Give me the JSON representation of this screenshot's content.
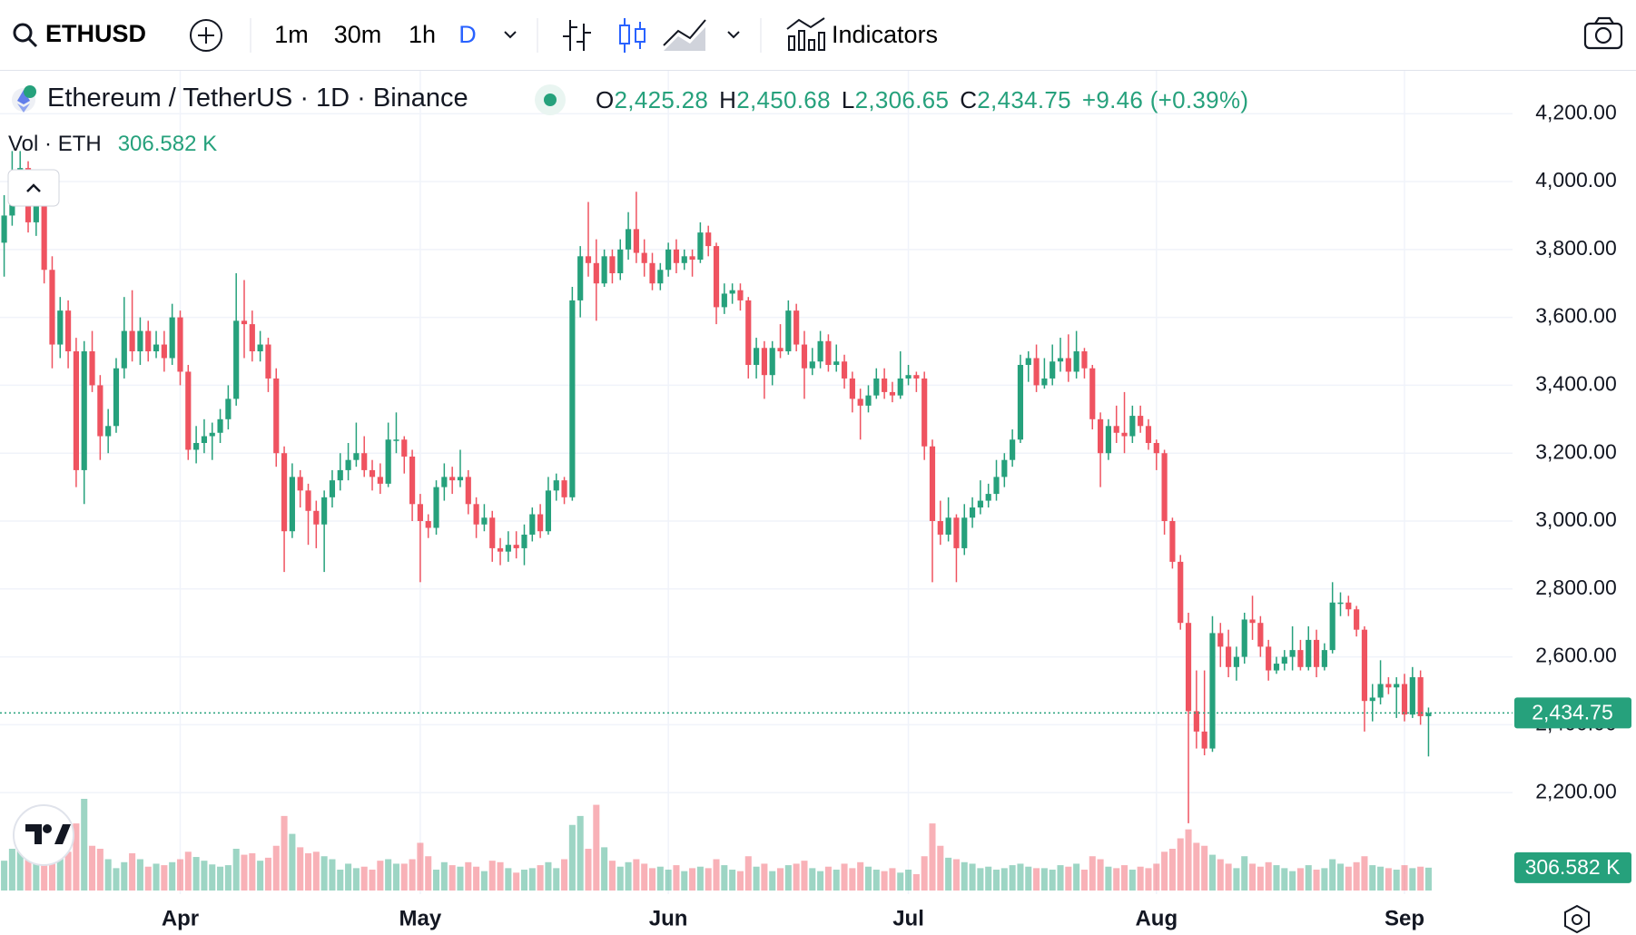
{
  "toolbar": {
    "symbol": "ETHUSD",
    "intervals": [
      "1m",
      "30m",
      "1h",
      "D"
    ],
    "indicators": "Indicators"
  },
  "legend": {
    "title": "Ethereum / TetherUS · 1D · Binance",
    "open_label": "O",
    "open": "2,425.28",
    "high_label": "H",
    "high": "2,450.68",
    "low_label": "L",
    "low": "2,306.65",
    "close_label": "C",
    "close": "2,434.75",
    "change": "+9.46 (+0.39%)",
    "volume_title": "Vol · ETH",
    "volume": "306.582 K"
  },
  "chart_data": {
    "type": "candlestick",
    "up_color": "#26a17c",
    "down_color": "#ef5360",
    "grid": true,
    "xlim": [
      -0.52,
      188.5
    ],
    "xticks": [
      {
        "value": 22,
        "label": "Apr"
      },
      {
        "value": 52,
        "label": "May"
      },
      {
        "value": 83,
        "label": "Jun"
      },
      {
        "value": 113,
        "label": "Jul"
      },
      {
        "value": 144,
        "label": "Aug"
      },
      {
        "value": 175,
        "label": "Sep"
      }
    ],
    "ylim": [
      1901,
      4329
    ],
    "yticks": [
      {
        "value": 2200,
        "label": "2,200.00"
      },
      {
        "value": 2400,
        "label": "2,400.00"
      },
      {
        "value": 2600,
        "label": "2,600.00"
      },
      {
        "value": 2800,
        "label": "2,800.00"
      },
      {
        "value": 3000,
        "label": "3,000.00"
      },
      {
        "value": 3200,
        "label": "3,200.00"
      },
      {
        "value": 3400,
        "label": "3,400.00"
      },
      {
        "value": 3600,
        "label": "3,600.00"
      },
      {
        "value": 3800,
        "label": "3,800.00"
      },
      {
        "value": 4000,
        "label": "4,000.00"
      },
      {
        "value": 4200,
        "label": "4,200.00"
      }
    ],
    "ohlc": [
      [
        3820,
        3960,
        3720,
        3900
      ],
      [
        3900,
        4090,
        3870,
        4000
      ],
      [
        4000,
        4090,
        3960,
        4040
      ],
      [
        4040,
        4060,
        3850,
        3880
      ],
      [
        3880,
        4000,
        3840,
        3980
      ],
      [
        3980,
        4000,
        3700,
        3740
      ],
      [
        3740,
        3780,
        3450,
        3520
      ],
      [
        3520,
        3660,
        3480,
        3620
      ],
      [
        3620,
        3650,
        3450,
        3500
      ],
      [
        3500,
        3540,
        3100,
        3150
      ],
      [
        3150,
        3530,
        3050,
        3500
      ],
      [
        3500,
        3560,
        3380,
        3400
      ],
      [
        3400,
        3430,
        3180,
        3250
      ],
      [
        3250,
        3330,
        3200,
        3280
      ],
      [
        3280,
        3480,
        3260,
        3450
      ],
      [
        3450,
        3660,
        3420,
        3560
      ],
      [
        3560,
        3680,
        3470,
        3500
      ],
      [
        3500,
        3600,
        3460,
        3560
      ],
      [
        3560,
        3590,
        3470,
        3500
      ],
      [
        3500,
        3560,
        3480,
        3520
      ],
      [
        3520,
        3560,
        3440,
        3480
      ],
      [
        3480,
        3640,
        3460,
        3600
      ],
      [
        3600,
        3620,
        3400,
        3440
      ],
      [
        3440,
        3460,
        3180,
        3210
      ],
      [
        3210,
        3280,
        3170,
        3230
      ],
      [
        3230,
        3300,
        3200,
        3250
      ],
      [
        3250,
        3290,
        3180,
        3260
      ],
      [
        3260,
        3330,
        3230,
        3300
      ],
      [
        3300,
        3400,
        3270,
        3360
      ],
      [
        3360,
        3730,
        3340,
        3590
      ],
      [
        3590,
        3710,
        3480,
        3580
      ],
      [
        3580,
        3620,
        3470,
        3500
      ],
      [
        3500,
        3560,
        3470,
        3520
      ],
      [
        3520,
        3540,
        3380,
        3420
      ],
      [
        3420,
        3450,
        3160,
        3200
      ],
      [
        3200,
        3220,
        2850,
        2970
      ],
      [
        2970,
        3170,
        2950,
        3130
      ],
      [
        3130,
        3150,
        3040,
        3090
      ],
      [
        3090,
        3110,
        2930,
        3030
      ],
      [
        3030,
        3060,
        2920,
        2990
      ],
      [
        2990,
        3090,
        2850,
        3070
      ],
      [
        3070,
        3150,
        3040,
        3120
      ],
      [
        3120,
        3200,
        3090,
        3150
      ],
      [
        3150,
        3230,
        3120,
        3180
      ],
      [
        3180,
        3290,
        3160,
        3200
      ],
      [
        3200,
        3250,
        3130,
        3150
      ],
      [
        3150,
        3180,
        3090,
        3130
      ],
      [
        3130,
        3170,
        3080,
        3110
      ],
      [
        3110,
        3290,
        3100,
        3240
      ],
      [
        3240,
        3320,
        3200,
        3240
      ],
      [
        3240,
        3250,
        3140,
        3190
      ],
      [
        3190,
        3210,
        3000,
        3050
      ],
      [
        3050,
        3080,
        2820,
        3000
      ],
      [
        3000,
        3020,
        2950,
        2980
      ],
      [
        2980,
        3120,
        2960,
        3100
      ],
      [
        3100,
        3170,
        3060,
        3130
      ],
      [
        3130,
        3160,
        3080,
        3120
      ],
      [
        3120,
        3210,
        3100,
        3130
      ],
      [
        3130,
        3150,
        3020,
        3050
      ],
      [
        3050,
        3070,
        2950,
        2990
      ],
      [
        2990,
        3050,
        2970,
        3010
      ],
      [
        3010,
        3030,
        2880,
        2920
      ],
      [
        2920,
        2950,
        2870,
        2910
      ],
      [
        2910,
        2970,
        2880,
        2930
      ],
      [
        2930,
        2970,
        2890,
        2920
      ],
      [
        2920,
        2990,
        2870,
        2960
      ],
      [
        2960,
        3040,
        2940,
        3020
      ],
      [
        3020,
        3050,
        2950,
        2970
      ],
      [
        2970,
        3130,
        2960,
        3090
      ],
      [
        3090,
        3140,
        3060,
        3120
      ],
      [
        3120,
        3130,
        3050,
        3070
      ],
      [
        3070,
        3690,
        3060,
        3650
      ],
      [
        3650,
        3810,
        3600,
        3780
      ],
      [
        3780,
        3940,
        3720,
        3760
      ],
      [
        3760,
        3830,
        3590,
        3700
      ],
      [
        3700,
        3800,
        3690,
        3780
      ],
      [
        3780,
        3800,
        3700,
        3730
      ],
      [
        3730,
        3830,
        3710,
        3800
      ],
      [
        3800,
        3910,
        3770,
        3860
      ],
      [
        3860,
        3970,
        3760,
        3790
      ],
      [
        3790,
        3830,
        3720,
        3760
      ],
      [
        3760,
        3790,
        3680,
        3700
      ],
      [
        3700,
        3760,
        3680,
        3740
      ],
      [
        3740,
        3820,
        3720,
        3800
      ],
      [
        3800,
        3830,
        3730,
        3760
      ],
      [
        3760,
        3800,
        3740,
        3780
      ],
      [
        3780,
        3800,
        3720,
        3770
      ],
      [
        3770,
        3880,
        3760,
        3850
      ],
      [
        3850,
        3870,
        3780,
        3810
      ],
      [
        3810,
        3820,
        3580,
        3630
      ],
      [
        3630,
        3700,
        3610,
        3670
      ],
      [
        3670,
        3700,
        3640,
        3680
      ],
      [
        3680,
        3700,
        3620,
        3650
      ],
      [
        3650,
        3660,
        3420,
        3460
      ],
      [
        3460,
        3540,
        3420,
        3510
      ],
      [
        3510,
        3530,
        3360,
        3430
      ],
      [
        3430,
        3530,
        3400,
        3510
      ],
      [
        3510,
        3580,
        3480,
        3500
      ],
      [
        3500,
        3650,
        3490,
        3620
      ],
      [
        3620,
        3640,
        3500,
        3520
      ],
      [
        3520,
        3560,
        3360,
        3450
      ],
      [
        3450,
        3510,
        3430,
        3470
      ],
      [
        3470,
        3560,
        3450,
        3530
      ],
      [
        3530,
        3550,
        3440,
        3460
      ],
      [
        3460,
        3520,
        3440,
        3470
      ],
      [
        3470,
        3490,
        3390,
        3420
      ],
      [
        3420,
        3440,
        3320,
        3360
      ],
      [
        3360,
        3390,
        3240,
        3340
      ],
      [
        3340,
        3400,
        3320,
        3370
      ],
      [
        3370,
        3450,
        3360,
        3420
      ],
      [
        3420,
        3450,
        3360,
        3380
      ],
      [
        3380,
        3410,
        3350,
        3370
      ],
      [
        3370,
        3500,
        3360,
        3420
      ],
      [
        3420,
        3460,
        3400,
        3430
      ],
      [
        3430,
        3440,
        3380,
        3420
      ],
      [
        3420,
        3440,
        3180,
        3220
      ],
      [
        3220,
        3240,
        2820,
        3000
      ],
      [
        3000,
        3060,
        2930,
        2960
      ],
      [
        2960,
        3070,
        2940,
        3010
      ],
      [
        3010,
        3020,
        2820,
        2920
      ],
      [
        2920,
        3050,
        2900,
        3010
      ],
      [
        3010,
        3070,
        2980,
        3040
      ],
      [
        3040,
        3120,
        3020,
        3060
      ],
      [
        3060,
        3110,
        3040,
        3080
      ],
      [
        3080,
        3180,
        3060,
        3130
      ],
      [
        3130,
        3200,
        3100,
        3180
      ],
      [
        3180,
        3270,
        3160,
        3240
      ],
      [
        3240,
        3490,
        3230,
        3460
      ],
      [
        3460,
        3500,
        3410,
        3480
      ],
      [
        3480,
        3520,
        3380,
        3400
      ],
      [
        3400,
        3480,
        3390,
        3420
      ],
      [
        3420,
        3520,
        3400,
        3470
      ],
      [
        3470,
        3540,
        3440,
        3480
      ],
      [
        3480,
        3550,
        3410,
        3440
      ],
      [
        3440,
        3560,
        3420,
        3500
      ],
      [
        3500,
        3510,
        3420,
        3450
      ],
      [
        3450,
        3460,
        3270,
        3300
      ],
      [
        3300,
        3320,
        3100,
        3200
      ],
      [
        3200,
        3300,
        3180,
        3280
      ],
      [
        3280,
        3340,
        3230,
        3260
      ],
      [
        3260,
        3380,
        3200,
        3250
      ],
      [
        3250,
        3340,
        3230,
        3310
      ],
      [
        3310,
        3340,
        3260,
        3280
      ],
      [
        3280,
        3300,
        3210,
        3230
      ],
      [
        3230,
        3240,
        3150,
        3200
      ],
      [
        3200,
        3210,
        2960,
        3000
      ],
      [
        3000,
        3010,
        2860,
        2880
      ],
      [
        2880,
        2900,
        2680,
        2700
      ],
      [
        2700,
        2730,
        2110,
        2440
      ],
      [
        2440,
        2560,
        2330,
        2380
      ],
      [
        2380,
        2560,
        2310,
        2330
      ],
      [
        2330,
        2720,
        2320,
        2670
      ],
      [
        2670,
        2700,
        2570,
        2630
      ],
      [
        2630,
        2680,
        2540,
        2570
      ],
      [
        2570,
        2630,
        2530,
        2600
      ],
      [
        2600,
        2730,
        2580,
        2710
      ],
      [
        2710,
        2780,
        2650,
        2700
      ],
      [
        2700,
        2720,
        2600,
        2630
      ],
      [
        2630,
        2650,
        2530,
        2560
      ],
      [
        2560,
        2600,
        2550,
        2580
      ],
      [
        2580,
        2620,
        2560,
        2600
      ],
      [
        2600,
        2690,
        2560,
        2620
      ],
      [
        2620,
        2650,
        2560,
        2570
      ],
      [
        2570,
        2690,
        2560,
        2650
      ],
      [
        2650,
        2680,
        2540,
        2570
      ],
      [
        2570,
        2640,
        2560,
        2620
      ],
      [
        2620,
        2820,
        2610,
        2760
      ],
      [
        2760,
        2790,
        2720,
        2760
      ],
      [
        2760,
        2780,
        2720,
        2740
      ],
      [
        2740,
        2750,
        2660,
        2680
      ],
      [
        2680,
        2690,
        2380,
        2470
      ],
      [
        2470,
        2520,
        2410,
        2480
      ],
      [
        2480,
        2590,
        2460,
        2520
      ],
      [
        2520,
        2540,
        2490,
        2510
      ],
      [
        2510,
        2540,
        2420,
        2520
      ],
      [
        2520,
        2550,
        2410,
        2430
      ],
      [
        2430,
        2570,
        2420,
        2540
      ],
      [
        2540,
        2560,
        2400,
        2425.28
      ],
      [
        2425.28,
        2450.68,
        2306.65,
        2434.75
      ]
    ],
    "volume": [
      400,
      560,
      600,
      450,
      380,
      700,
      620,
      450,
      520,
      900,
      1230,
      600,
      560,
      420,
      300,
      380,
      500,
      420,
      320,
      360,
      340,
      380,
      420,
      520,
      450,
      400,
      350,
      320,
      340,
      560,
      480,
      500,
      400,
      440,
      600,
      1000,
      760,
      580,
      500,
      520,
      460,
      420,
      280,
      360,
      300,
      320,
      280,
      400,
      420,
      360,
      360,
      420,
      640,
      460,
      280,
      380,
      340,
      320,
      380,
      320,
      260,
      400,
      380,
      300,
      240,
      280,
      300,
      340,
      380,
      300,
      420,
      880,
      1000,
      560,
      1150,
      580,
      400,
      320,
      380,
      420,
      360,
      300,
      320,
      280,
      340,
      260,
      300,
      320,
      300,
      420,
      340,
      280,
      260,
      460,
      320,
      360,
      260,
      300,
      340,
      360,
      400,
      300,
      260,
      320,
      280,
      360,
      300,
      380,
      320,
      280,
      260,
      300,
      240,
      280,
      220,
      460,
      900,
      600,
      440,
      420,
      380,
      360,
      300,
      320,
      280,
      300,
      340,
      360,
      320,
      300,
      300,
      280,
      340,
      320,
      360,
      280,
      460,
      420,
      320,
      300,
      340,
      280,
      320,
      300,
      360,
      520,
      560,
      700,
      820,
      640,
      600,
      480,
      420,
      360,
      300,
      460,
      360,
      320,
      380,
      340,
      300,
      260,
      300,
      340,
      280,
      300,
      420,
      360,
      320,
      380,
      460,
      340,
      320,
      300,
      280,
      340,
      300,
      320,
      306.582
    ]
  }
}
